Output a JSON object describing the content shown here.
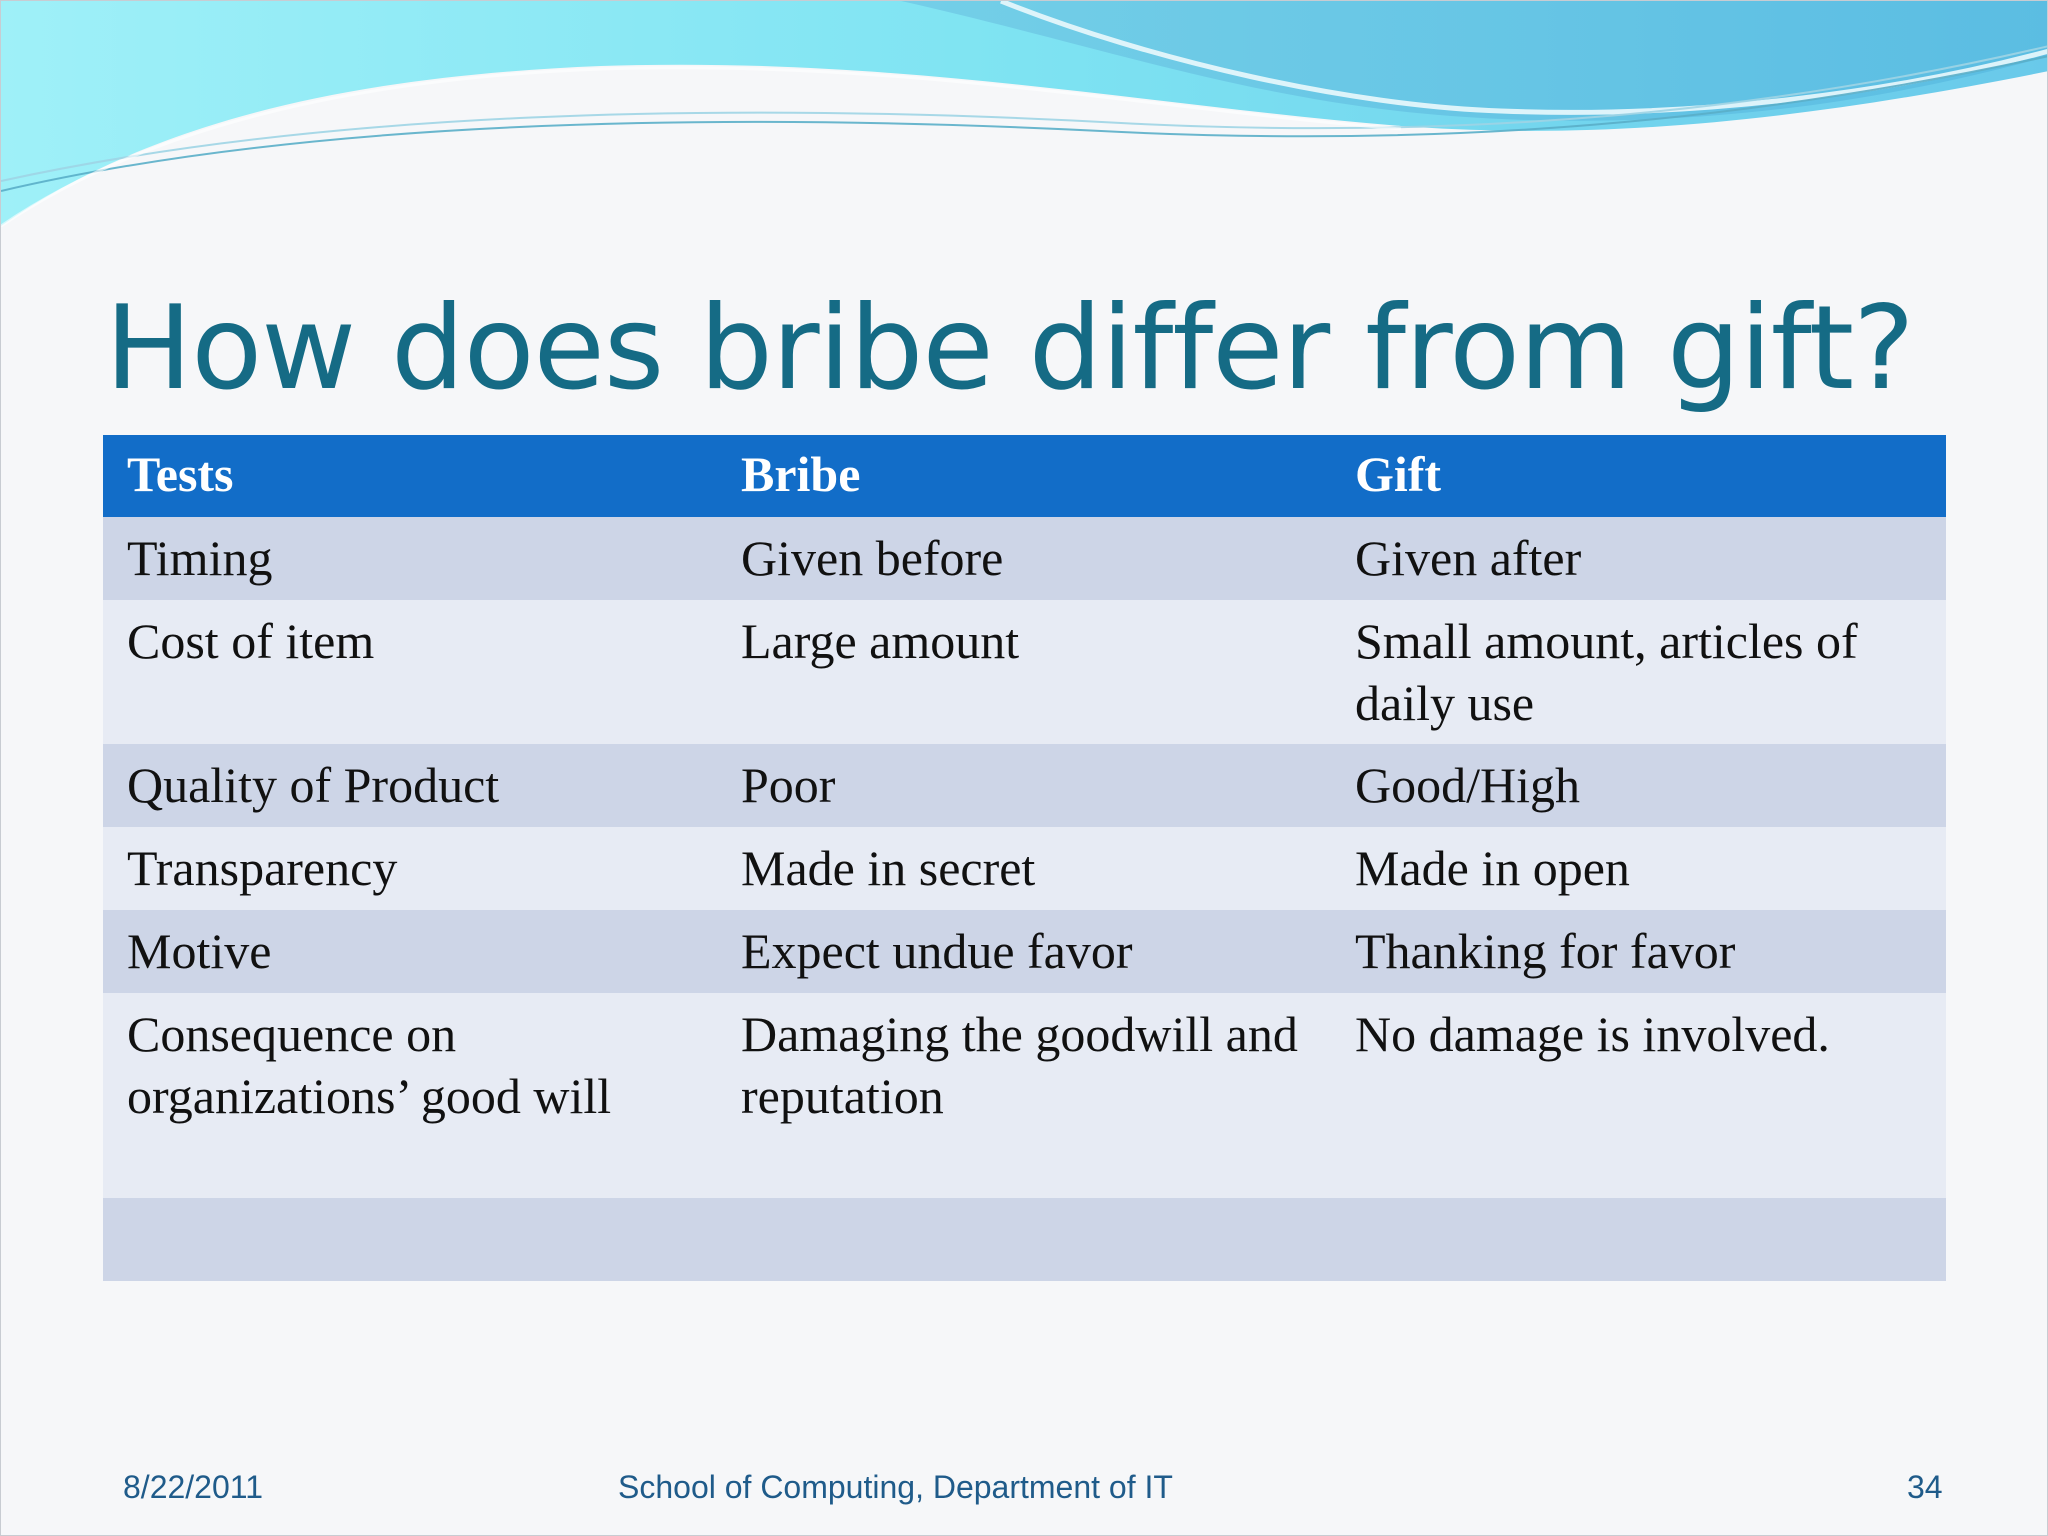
{
  "slide": {
    "title": "How does bribe differ from gift?"
  },
  "table": {
    "headers": [
      "Tests",
      "Bribe",
      "Gift"
    ],
    "rows": [
      [
        "Timing",
        "Given before",
        "Given after"
      ],
      [
        "Cost of item",
        "Large amount",
        "Small amount, articles of daily use"
      ],
      [
        "Quality of Product",
        "Poor",
        "Good/High"
      ],
      [
        "Transparency",
        "Made in secret",
        "Made in open"
      ],
      [
        "Motive",
        "Expect undue favor",
        "Thanking for favor"
      ],
      [
        "Consequence on organizations’ good will",
        "Damaging the goodwill and reputation",
        "No damage is involved."
      ],
      [
        "",
        "",
        ""
      ]
    ]
  },
  "footer": {
    "date": "8/22/2011",
    "organization": "School of Computing, Department of IT",
    "page_number": "34"
  },
  "colors": {
    "title": "#156b85",
    "header_row": "#126dc8",
    "row_dark": "#cdd5e7",
    "row_light": "#e7ebf4",
    "footer_text": "#1f5b8a",
    "wave_light": "#8fe6f4",
    "wave_mid": "#74cfe8"
  }
}
